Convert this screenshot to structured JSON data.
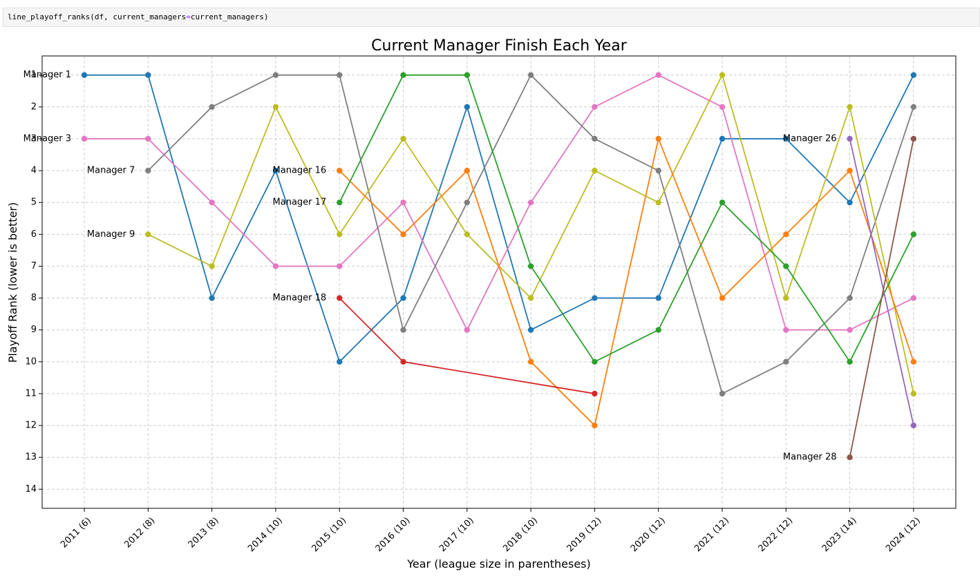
{
  "code_cell": {
    "fn": "line_playoff_ranks(df, current_managers",
    "op": "=",
    "rest": "current_managers)"
  },
  "chart_data": {
    "type": "line",
    "title": "Current Manager Finish Each Year",
    "xlabel": "Year (league size in parentheses)",
    "ylabel": "Playoff Rank (lower is better)",
    "categories": [
      "2011 (6)",
      "2012 (8)",
      "2013 (8)",
      "2014 (10)",
      "2015 (10)",
      "2016 (10)",
      "2017 (10)",
      "2018 (10)",
      "2019 (12)",
      "2020 (12)",
      "2021 (12)",
      "2022 (12)",
      "2023 (14)",
      "2024 (12)"
    ],
    "yticks": [
      "1",
      "2",
      "3",
      "4",
      "5",
      "6",
      "7",
      "8",
      "9",
      "10",
      "11",
      "12",
      "13",
      "14"
    ],
    "ylim": [
      14.6,
      0.4
    ],
    "y_inverted": true,
    "grid": true,
    "series": [
      {
        "name": "Manager 1",
        "color": "#1f77b4",
        "values": [
          1,
          1,
          8,
          4,
          10,
          8,
          2,
          9,
          8,
          8,
          3,
          3,
          5,
          1
        ]
      },
      {
        "name": "Manager 3",
        "color": "#e377c2",
        "values": [
          3,
          3,
          5,
          7,
          7,
          5,
          9,
          5,
          2,
          1,
          2,
          9,
          9,
          8
        ]
      },
      {
        "name": "Manager 7",
        "color": "#7f7f7f",
        "values": [
          null,
          4,
          2,
          1,
          1,
          9,
          5,
          1,
          3,
          4,
          11,
          10,
          8,
          2
        ]
      },
      {
        "name": "Manager 9",
        "color": "#bcbd22",
        "values": [
          null,
          6,
          7,
          2,
          6,
          3,
          6,
          8,
          4,
          5,
          1,
          8,
          2,
          11
        ]
      },
      {
        "name": "Manager 16",
        "color": "#ff7f0e",
        "values": [
          null,
          null,
          null,
          null,
          4,
          6,
          4,
          10,
          12,
          3,
          8,
          6,
          4,
          10
        ]
      },
      {
        "name": "Manager 17",
        "color": "#2ca02c",
        "values": [
          null,
          null,
          null,
          null,
          5,
          1,
          1,
          7,
          10,
          9,
          5,
          7,
          10,
          6
        ]
      },
      {
        "name": "Manager 18",
        "color": "#d62728",
        "values": [
          null,
          null,
          null,
          null,
          8,
          10,
          null,
          null,
          11,
          null,
          null,
          null,
          null,
          null
        ]
      },
      {
        "name": "Manager 26",
        "color": "#9467bd",
        "values": [
          null,
          null,
          null,
          null,
          null,
          null,
          null,
          null,
          null,
          null,
          null,
          null,
          3,
          12
        ]
      },
      {
        "name": "Manager 28",
        "color": "#8c564b",
        "values": [
          null,
          null,
          null,
          null,
          null,
          null,
          null,
          null,
          null,
          null,
          null,
          null,
          13,
          3
        ]
      }
    ]
  }
}
